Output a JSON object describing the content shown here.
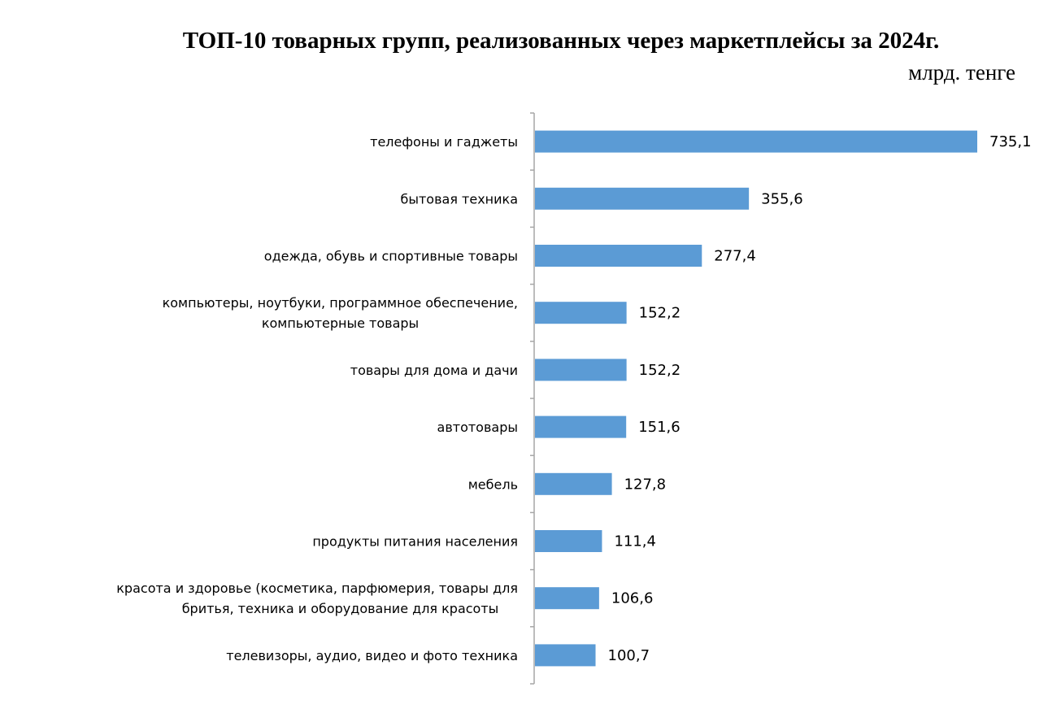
{
  "chart_data": {
    "type": "bar",
    "orientation": "horizontal",
    "title": "ТОП-10 товарных групп, реализованных через маркетплейсы за 2024г.",
    "unit": "млрд. тенге",
    "categories": [
      [
        "телефоны и гаджеты"
      ],
      [
        "бытовая техника"
      ],
      [
        "одежда, обувь и спортивные товары"
      ],
      [
        "компьютеры, ноутбуки, программное обеспечение,",
        "компьютерные товары"
      ],
      [
        "товары для дома и дачи"
      ],
      [
        "автотовары"
      ],
      [
        "мебель"
      ],
      [
        "продукты питания населения"
      ],
      [
        "красота и здоровье (косметика, парфюмерия, товары для",
        "бритья, техника и оборудование для красоты"
      ],
      [
        "телевизоры, аудио, видео и фото техника"
      ]
    ],
    "values": [
      735.1,
      355.6,
      277.4,
      152.2,
      152.2,
      151.6,
      127.8,
      111.4,
      106.6,
      100.7
    ],
    "value_labels": [
      "735,1",
      "355,6",
      "277,4",
      "152,2",
      "152,2",
      "151,6",
      "127,8",
      "111,4",
      "106,6",
      "100,7"
    ],
    "bar_color": "#5b9bd5",
    "axis_color": "#a6a6a6",
    "grid": false,
    "legend": "none"
  }
}
